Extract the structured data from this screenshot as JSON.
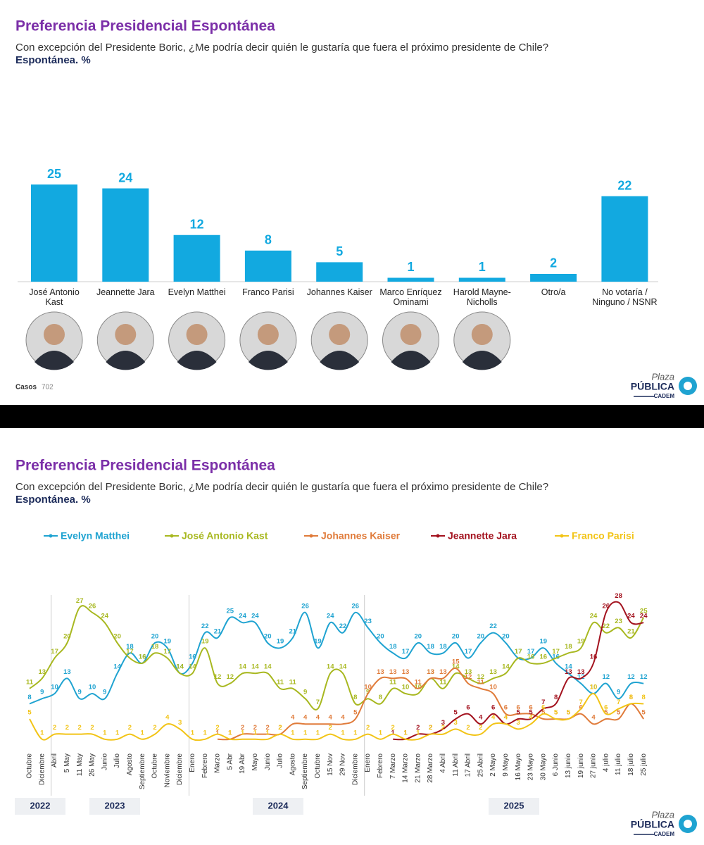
{
  "logo": {
    "line1": "Plaza",
    "line2": "PÚBLICA",
    "line3": "CADEM"
  },
  "chart_data": [
    {
      "type": "bar",
      "title": "Preferencia Presidencial Espontánea",
      "subtitle": "Con excepción del Presidente Boric, ¿Me podría decir quién le gustaría que fuera el próximo presidente de Chile?",
      "unit_note": "Espontánea. %",
      "categories": [
        "José Antonio Kast",
        "Jeannette Jara",
        "Evelyn Matthei",
        "Franco Parisi",
        "Johannes Kaiser",
        "Marco Enríquez Ominami",
        "Harold Mayne-Nicholls",
        "Otro/a",
        "No votaría / Ninguno / NSNR"
      ],
      "values": [
        25,
        24,
        12,
        8,
        5,
        1,
        1,
        2,
        22
      ],
      "color": "#12a9e0",
      "ylim": [
        0,
        25
      ],
      "cases_label": "Casos",
      "cases": 702
    },
    {
      "type": "line",
      "title": "Preferencia Presidencial Espontánea",
      "subtitle": "Con excepción del Presidente Boric, ¿Me podría decir quién le gustaría que fuera el próximo presidente de Chile?",
      "unit_note": "Espontánea. %",
      "categories": [
        "Octubre",
        "Diciembre",
        "Abril",
        "5 May",
        "11 May",
        "26 May",
        "Junio",
        "Julio",
        "Agosto",
        "Septiembre",
        "Octubre",
        "Noviembre",
        "Diciembre",
        "Enero",
        "Febrero",
        "Marzo",
        "5 Abr",
        "19 Abr",
        "Mayo",
        "Junio",
        "Julio",
        "Agosto",
        "Septiembre",
        "Octubre",
        "15 Nov",
        "29 Nov",
        "Diciembre",
        "Enero",
        "Febrero",
        "7 Marzo",
        "14 Marzo",
        "21 Marzo",
        "28 Marzo",
        "4 Abril",
        "11 Abril",
        "17 Abril",
        "25 Abril",
        "2 Mayo",
        "9 Mayo",
        "16 Mayo",
        "23 Mayo",
        "30 Mayo",
        "6 Junio",
        "13 junio",
        "19 junio",
        "27 junio",
        "4 julio",
        "11 julio",
        "18 julio",
        "25 julio"
      ],
      "years": [
        "2022",
        "2023",
        "2024",
        "2025"
      ],
      "ylim": [
        0,
        30
      ],
      "series": [
        {
          "name": "Evelyn Matthei",
          "color": "#1fa3d1",
          "values": [
            8,
            9,
            10,
            13,
            9,
            10,
            9,
            14,
            18,
            16,
            20,
            19,
            14,
            16,
            22,
            21,
            25,
            24,
            24,
            20,
            19,
            21,
            26,
            19,
            24,
            22,
            26,
            23,
            20,
            18,
            17,
            20,
            18,
            18,
            20,
            17,
            20,
            22,
            20,
            17,
            17,
            19,
            16,
            14,
            12,
            10,
            12,
            9,
            12,
            12
          ]
        },
        {
          "name": "José Antonio Kast",
          "color": "#a8b820",
          "values": [
            11,
            13,
            17,
            20,
            27,
            26,
            24,
            20,
            17,
            16,
            18,
            17,
            14,
            14,
            19,
            12,
            12,
            14,
            14,
            14,
            11,
            11,
            9,
            7,
            14,
            14,
            8,
            9,
            8,
            11,
            10,
            10,
            13,
            11,
            14,
            13,
            12,
            13,
            14,
            17,
            16,
            16,
            17,
            18,
            19,
            24,
            22,
            23,
            21,
            25
          ]
        },
        {
          "name": "Johannes Kaiser",
          "color": "#e07b3a",
          "values": [
            null,
            null,
            null,
            null,
            null,
            null,
            null,
            null,
            null,
            null,
            null,
            null,
            null,
            null,
            null,
            1,
            1,
            2,
            2,
            2,
            2,
            4,
            4,
            4,
            4,
            4,
            5,
            10,
            13,
            13,
            13,
            11,
            13,
            13,
            15,
            12,
            11,
            10,
            6,
            6,
            6,
            5,
            5,
            5,
            6,
            4,
            5,
            5,
            8,
            5
          ]
        },
        {
          "name": "Jeannette Jara",
          "color": "#a3121e",
          "values": [
            null,
            null,
            null,
            null,
            null,
            null,
            null,
            null,
            null,
            null,
            null,
            null,
            null,
            null,
            null,
            null,
            null,
            null,
            null,
            null,
            null,
            null,
            null,
            null,
            null,
            null,
            null,
            null,
            null,
            1,
            1,
            2,
            2,
            3,
            5,
            6,
            4,
            6,
            4,
            5,
            5,
            7,
            8,
            13,
            13,
            16,
            26,
            28,
            24,
            24
          ]
        },
        {
          "name": "Franco Parisi",
          "color": "#f2c417",
          "values": [
            5,
            1,
            2,
            2,
            2,
            2,
            1,
            1,
            2,
            1,
            2,
            4,
            3,
            1,
            1,
            2,
            1,
            1,
            1,
            1,
            2,
            1,
            1,
            1,
            2,
            1,
            1,
            2,
            1,
            2,
            1,
            1,
            2,
            2,
            3,
            2,
            2,
            4,
            4,
            3,
            4,
            6,
            5,
            5,
            7,
            10,
            6,
            7,
            8,
            8
          ]
        }
      ]
    }
  ]
}
